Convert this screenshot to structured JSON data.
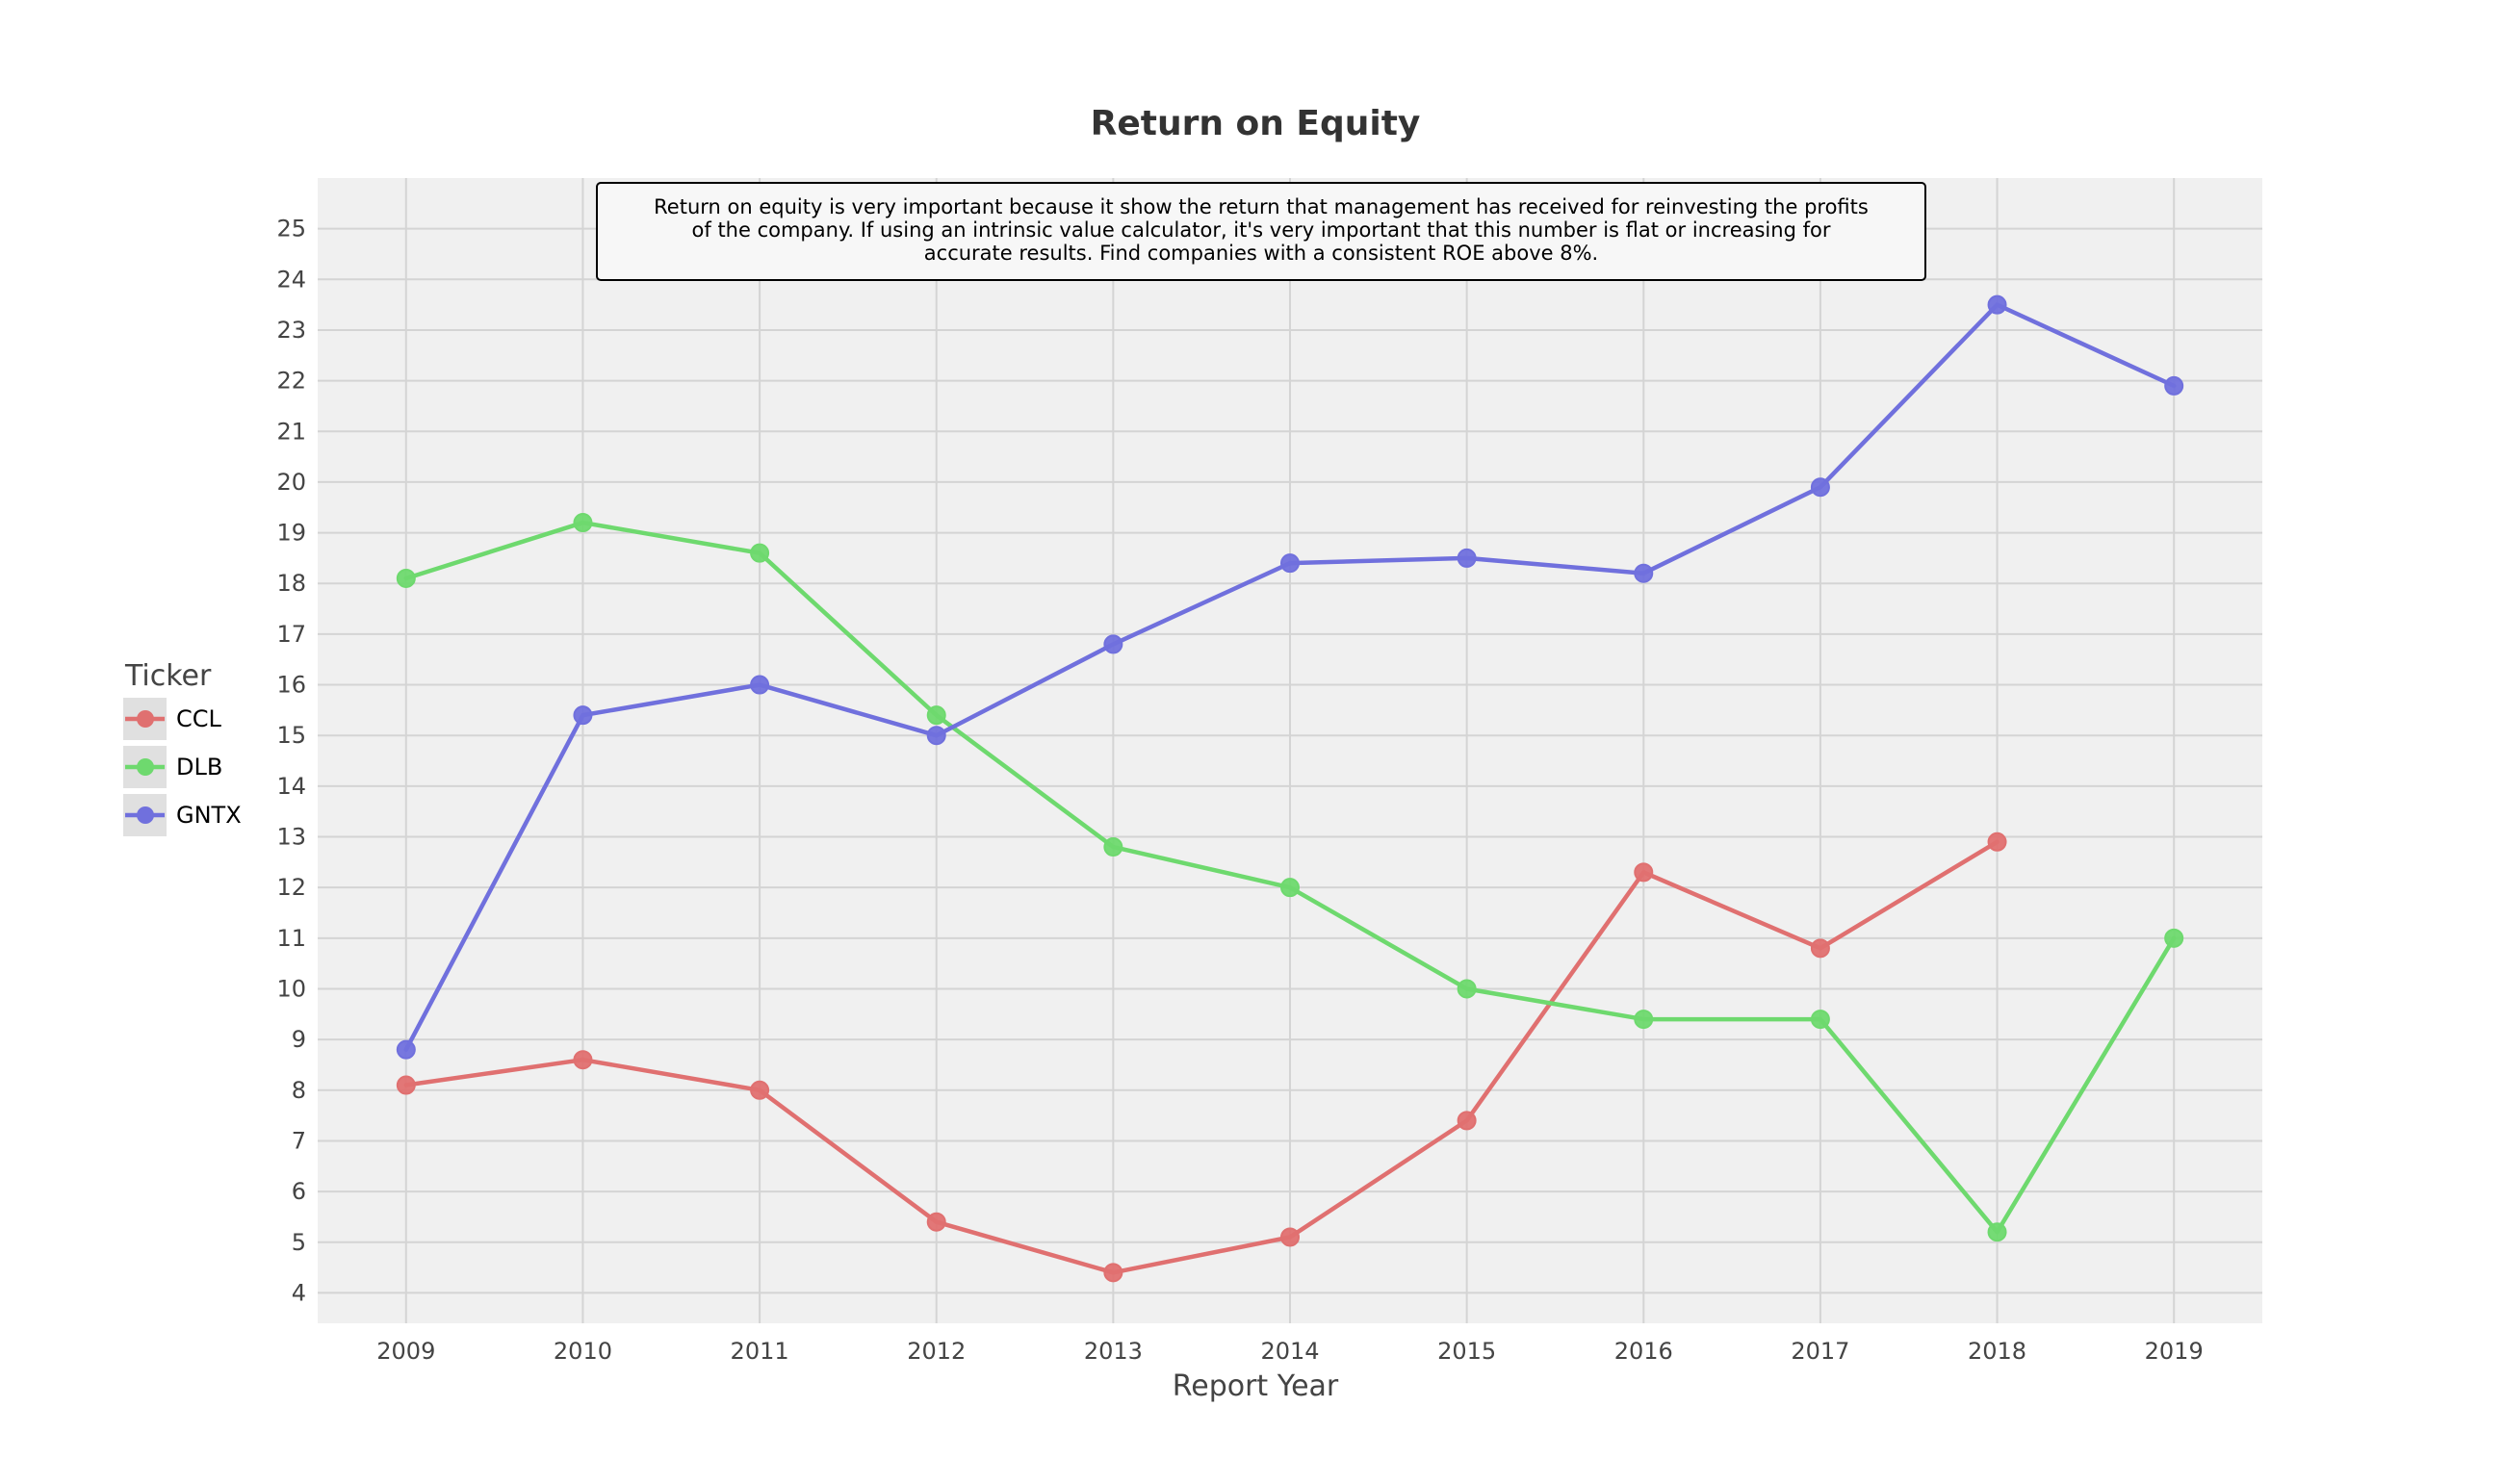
{
  "chart_data": {
    "type": "line",
    "title": "Return on Equity",
    "xlabel": "Report Year",
    "ylabel": "",
    "x": [
      2009,
      2010,
      2011,
      2012,
      2013,
      2014,
      2015,
      2016,
      2017,
      2018,
      2019
    ],
    "xlim": [
      2008.5,
      2019.5
    ],
    "ylim": [
      3.4,
      26.0
    ],
    "yticks": [
      4,
      5,
      6,
      7,
      8,
      9,
      10,
      11,
      12,
      13,
      14,
      15,
      16,
      17,
      18,
      19,
      20,
      21,
      22,
      23,
      24,
      25
    ],
    "grid": true,
    "legend": {
      "title": "Ticker",
      "placement": "left"
    },
    "annotation": {
      "lines": [
        "Return on equity is very important because it show the return that management has received for reinvesting the profits",
        "of the company. If using an intrinsic value calculator, it's very important that this number is flat or increasing for",
        "accurate results. Find companies with a consistent ROE above 8%."
      ]
    },
    "series": [
      {
        "name": "CCL",
        "color": "#e07070",
        "values": [
          8.1,
          8.6,
          8.0,
          5.4,
          4.4,
          5.1,
          7.4,
          12.3,
          10.8,
          12.9,
          null
        ]
      },
      {
        "name": "DLB",
        "color": "#6ed96e",
        "values": [
          18.1,
          19.2,
          18.6,
          15.4,
          12.8,
          12.0,
          10.0,
          9.4,
          9.4,
          5.2,
          11.0
        ]
      },
      {
        "name": "GNTX",
        "color": "#7070dd",
        "values": [
          8.8,
          15.4,
          16.0,
          15.0,
          16.8,
          18.4,
          18.5,
          18.2,
          19.9,
          23.5,
          21.9
        ]
      }
    ]
  }
}
